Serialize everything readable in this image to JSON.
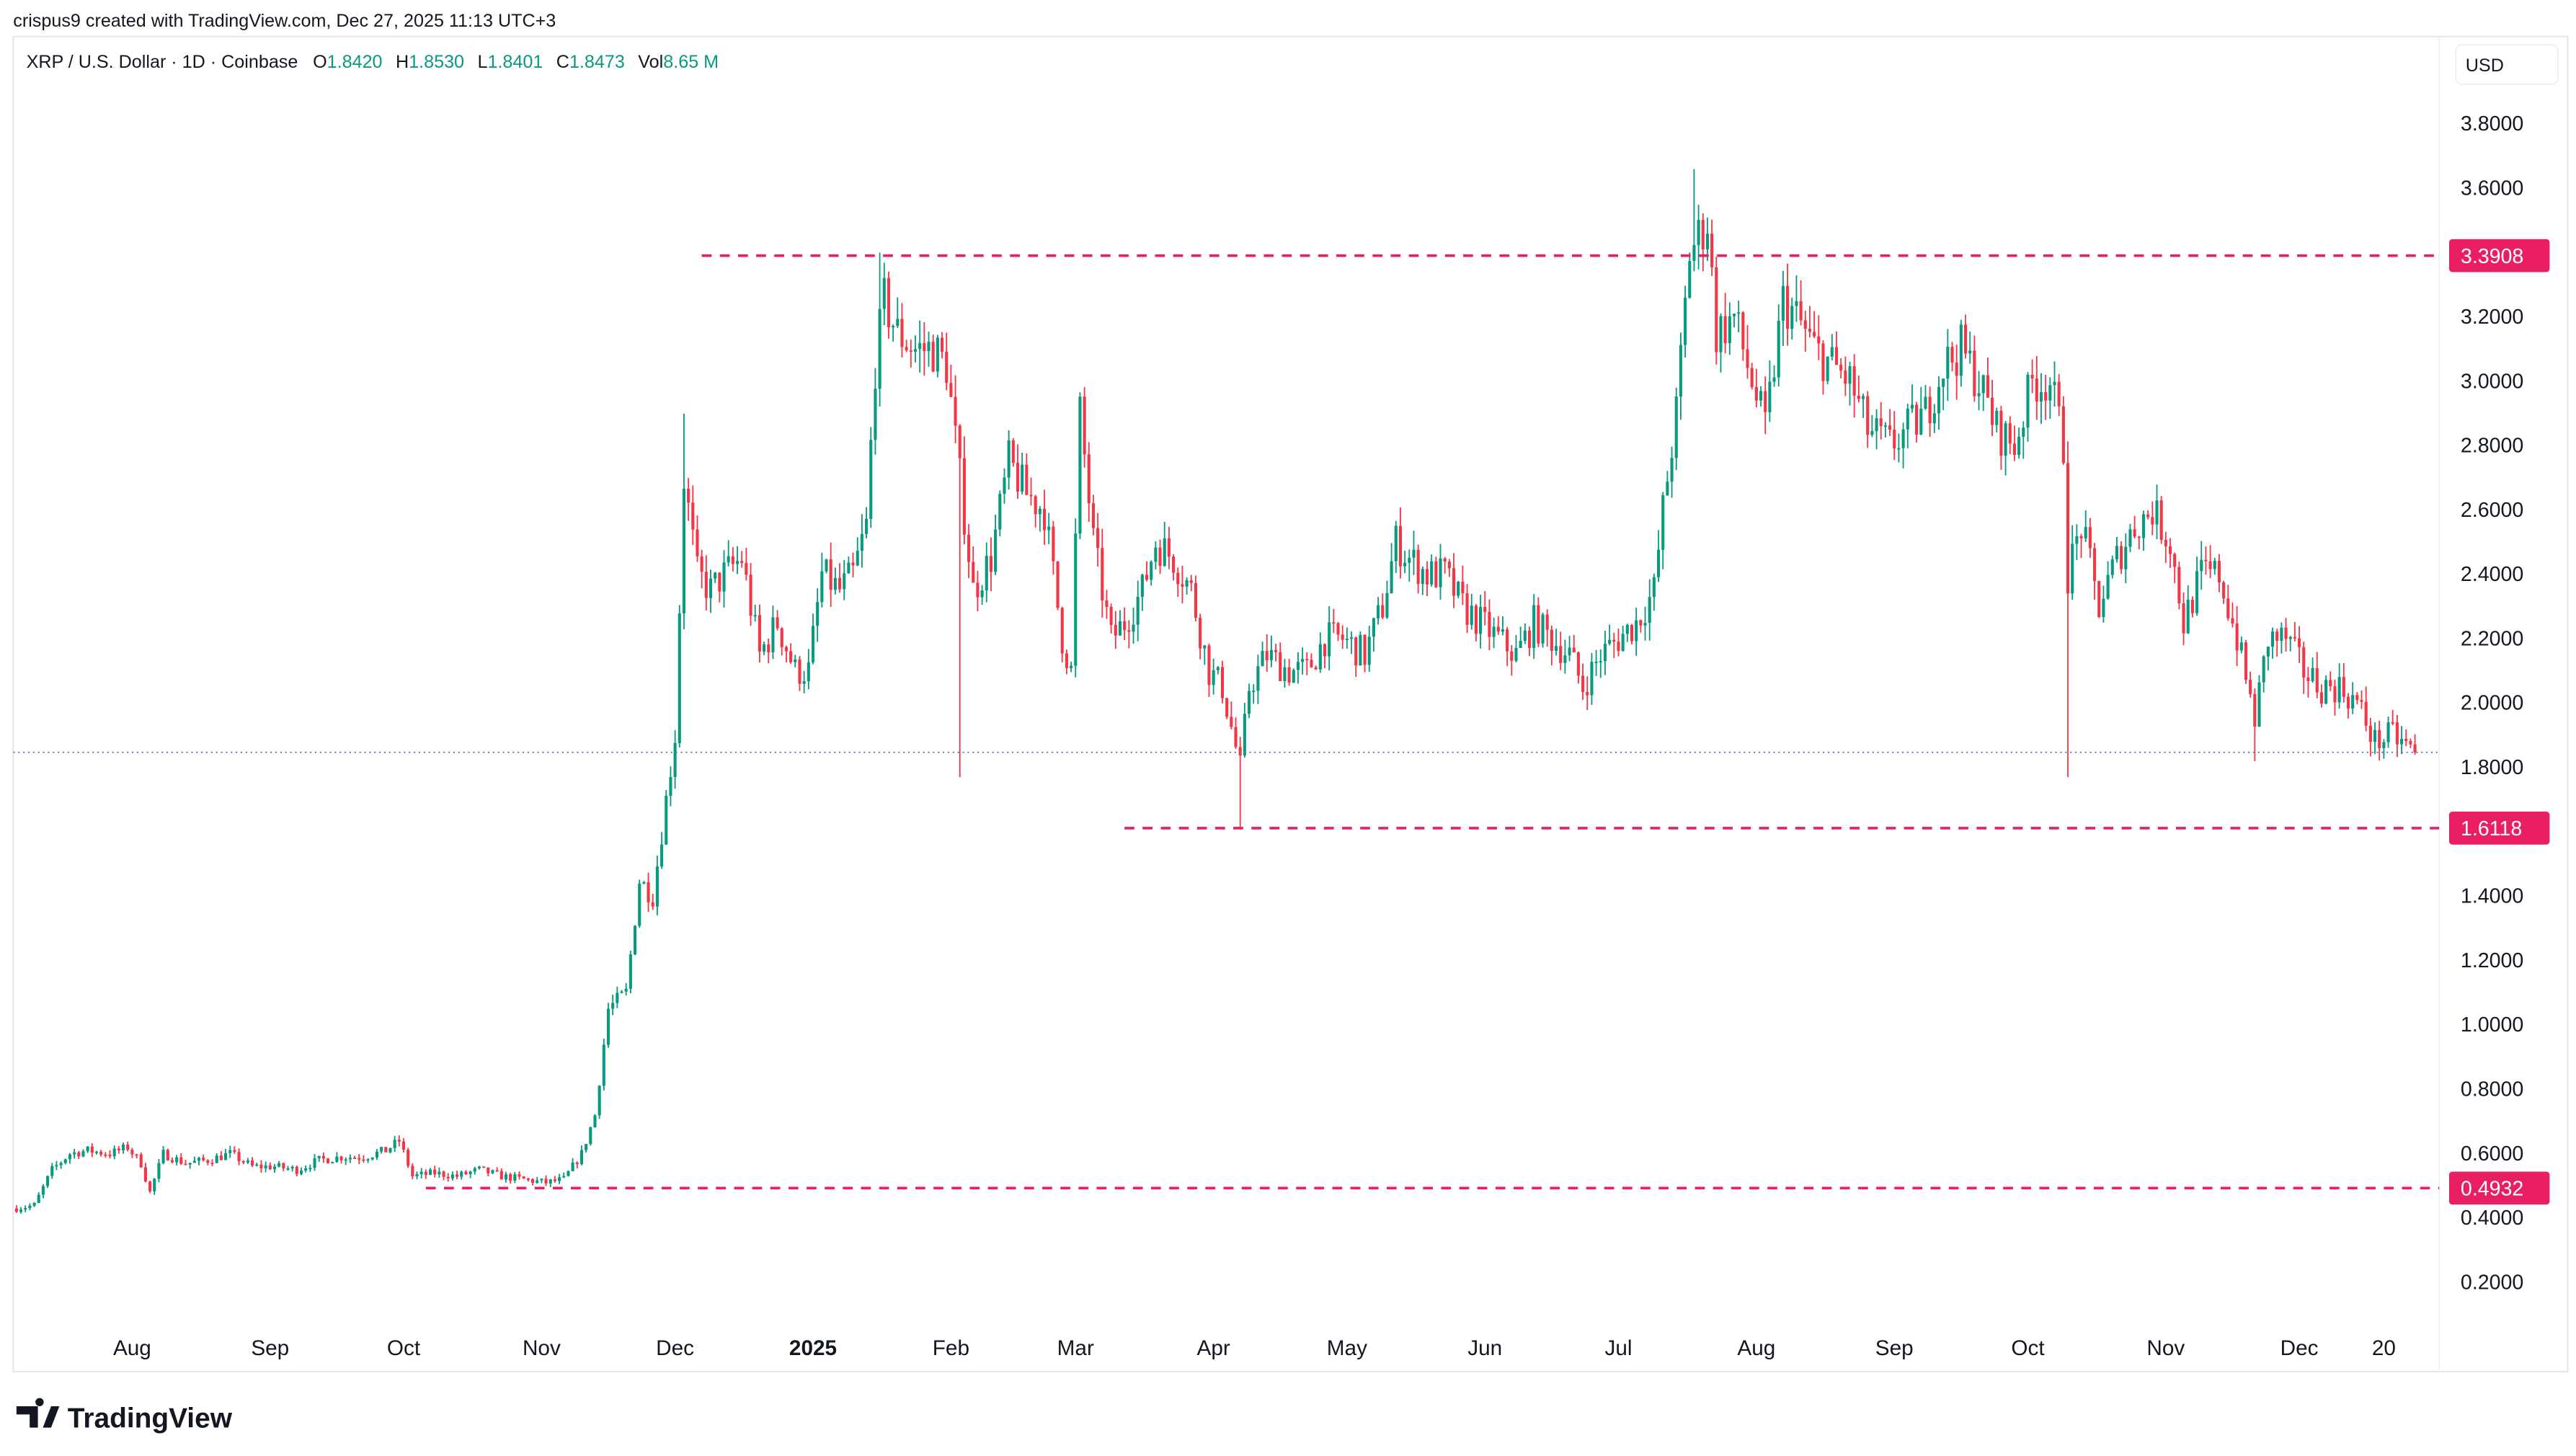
{
  "header": {
    "credit": "crispus9 created with TradingView.com, Dec 27, 2025 11:13 UTC+3",
    "symbol": "XRP / U.S. Dollar · 1D · Coinbase",
    "o_label": "O",
    "o_value": "1.8420",
    "h_label": "H",
    "h_value": "1.8530",
    "l_label": "L",
    "l_value": "1.8401",
    "c_label": "C",
    "c_value": "1.8473",
    "vol_label": "Vol",
    "vol_value": "8.65 M"
  },
  "currency_button": "USD",
  "footer": {
    "logo_text": "TradingView"
  },
  "colors": {
    "up": "#089981",
    "down": "#f23645",
    "level": "#e91e63",
    "last_price": "#5b7bb0"
  },
  "chart_data": {
    "type": "candlestick",
    "title": "",
    "interval": "1D",
    "ylim": [
      0.1,
      3.95
    ],
    "y_ticks": [
      "3.8000",
      "3.6000",
      "3.2000",
      "3.0000",
      "2.8000",
      "2.6000",
      "2.4000",
      "2.2000",
      "2.0000",
      "1.8000",
      "1.4000",
      "1.2000",
      "1.0000",
      "0.8000",
      "0.6000",
      "0.4000",
      "0.2000"
    ],
    "x_ticks": [
      {
        "label": "Aug",
        "date": "2024-08-01"
      },
      {
        "label": "Sep",
        "date": "2024-09-01"
      },
      {
        "label": "Oct",
        "date": "2024-10-01"
      },
      {
        "label": "Nov",
        "date": "2024-11-01"
      },
      {
        "label": "Dec",
        "date": "2024-12-01"
      },
      {
        "label": "2025",
        "date": "2025-01-01",
        "bold": true
      },
      {
        "label": "Feb",
        "date": "2025-02-01"
      },
      {
        "label": "Mar",
        "date": "2025-03-01"
      },
      {
        "label": "Apr",
        "date": "2025-04-01"
      },
      {
        "label": "May",
        "date": "2025-05-01"
      },
      {
        "label": "Jun",
        "date": "2025-06-01"
      },
      {
        "label": "Jul",
        "date": "2025-07-01"
      },
      {
        "label": "Aug",
        "date": "2025-08-01"
      },
      {
        "label": "Sep",
        "date": "2025-09-01"
      },
      {
        "label": "Oct",
        "date": "2025-10-01"
      },
      {
        "label": "Nov",
        "date": "2025-11-01"
      },
      {
        "label": "Dec",
        "date": "2025-12-01"
      },
      {
        "label": "20",
        "date": "2025-12-20"
      }
    ],
    "horizontal_levels": [
      {
        "value": 3.3908,
        "label": "3.3908",
        "from": "2024-12-07"
      },
      {
        "value": 1.6118,
        "label": "1.6118",
        "from": "2025-03-12"
      },
      {
        "value": 0.4932,
        "label": "0.4932",
        "from": "2024-10-06"
      }
    ],
    "last_price": 1.8473,
    "closes": [
      [
        "2024-07-06",
        0.43
      ],
      [
        "2024-07-10",
        0.44
      ],
      [
        "2024-07-14",
        0.55
      ],
      [
        "2024-07-18",
        0.6
      ],
      [
        "2024-07-22",
        0.61
      ],
      [
        "2024-07-27",
        0.6
      ],
      [
        "2024-07-31",
        0.62
      ],
      [
        "2024-08-03",
        0.57
      ],
      [
        "2024-08-05",
        0.48
      ],
      [
        "2024-08-08",
        0.6
      ],
      [
        "2024-08-13",
        0.57
      ],
      [
        "2024-08-18",
        0.58
      ],
      [
        "2024-08-23",
        0.6
      ],
      [
        "2024-08-28",
        0.56
      ],
      [
        "2024-09-02",
        0.56
      ],
      [
        "2024-09-07",
        0.55
      ],
      [
        "2024-09-12",
        0.58
      ],
      [
        "2024-09-17",
        0.59
      ],
      [
        "2024-09-22",
        0.59
      ],
      [
        "2024-09-27",
        0.61
      ],
      [
        "2024-09-30",
        0.64
      ],
      [
        "2024-10-03",
        0.53
      ],
      [
        "2024-10-08",
        0.54
      ],
      [
        "2024-10-13",
        0.53
      ],
      [
        "2024-10-18",
        0.55
      ],
      [
        "2024-10-23",
        0.53
      ],
      [
        "2024-10-28",
        0.52
      ],
      [
        "2024-11-02",
        0.51
      ],
      [
        "2024-11-06",
        0.52
      ],
      [
        "2024-11-10",
        0.6
      ],
      [
        "2024-11-13",
        0.72
      ],
      [
        "2024-11-16",
        1.05
      ],
      [
        "2024-11-20",
        1.1
      ],
      [
        "2024-11-23",
        1.45
      ],
      [
        "2024-11-26",
        1.4
      ],
      [
        "2024-11-29",
        1.7
      ],
      [
        "2024-12-01",
        1.9
      ],
      [
        "2024-12-03",
        2.7
      ],
      [
        "2024-12-06",
        2.4
      ],
      [
        "2024-12-09",
        2.35
      ],
      [
        "2024-12-12",
        2.4
      ],
      [
        "2024-12-16",
        2.45
      ],
      [
        "2024-12-20",
        2.15
      ],
      [
        "2024-12-24",
        2.25
      ],
      [
        "2024-12-28",
        2.1
      ],
      [
        "2024-12-31",
        2.1
      ],
      [
        "2025-01-03",
        2.4
      ],
      [
        "2025-01-07",
        2.35
      ],
      [
        "2025-01-10",
        2.4
      ],
      [
        "2025-01-13",
        2.55
      ],
      [
        "2025-01-15",
        3.05
      ],
      [
        "2025-01-17",
        3.25
      ],
      [
        "2025-01-20",
        3.15
      ],
      [
        "2025-01-24",
        3.1
      ],
      [
        "2025-01-28",
        3.1
      ],
      [
        "2025-01-31",
        3.05
      ],
      [
        "2025-02-03",
        2.7
      ],
      [
        "2025-02-06",
        2.35
      ],
      [
        "2025-02-10",
        2.45
      ],
      [
        "2025-02-14",
        2.75
      ],
      [
        "2025-02-18",
        2.65
      ],
      [
        "2025-02-22",
        2.6
      ],
      [
        "2025-02-26",
        2.2
      ],
      [
        "2025-02-28",
        2.1
      ],
      [
        "2025-03-02",
        2.9
      ],
      [
        "2025-03-05",
        2.5
      ],
      [
        "2025-03-09",
        2.2
      ],
      [
        "2025-03-12",
        2.25
      ],
      [
        "2025-03-16",
        2.35
      ],
      [
        "2025-03-19",
        2.5
      ],
      [
        "2025-03-23",
        2.45
      ],
      [
        "2025-03-27",
        2.35
      ],
      [
        "2025-03-31",
        2.1
      ],
      [
        "2025-04-03",
        2.05
      ],
      [
        "2025-04-07",
        1.8
      ],
      [
        "2025-04-09",
        2.05
      ],
      [
        "2025-04-13",
        2.15
      ],
      [
        "2025-04-18",
        2.1
      ],
      [
        "2025-04-22",
        2.1
      ],
      [
        "2025-04-26",
        2.2
      ],
      [
        "2025-04-30",
        2.2
      ],
      [
        "2025-05-05",
        2.15
      ],
      [
        "2025-05-09",
        2.3
      ],
      [
        "2025-05-12",
        2.5
      ],
      [
        "2025-05-15",
        2.45
      ],
      [
        "2025-05-19",
        2.4
      ],
      [
        "2025-05-23",
        2.4
      ],
      [
        "2025-05-27",
        2.3
      ],
      [
        "2025-05-31",
        2.25
      ],
      [
        "2025-06-04",
        2.2
      ],
      [
        "2025-06-08",
        2.15
      ],
      [
        "2025-06-12",
        2.25
      ],
      [
        "2025-06-16",
        2.2
      ],
      [
        "2025-06-20",
        2.15
      ],
      [
        "2025-06-23",
        2.05
      ],
      [
        "2025-06-27",
        2.15
      ],
      [
        "2025-07-01",
        2.2
      ],
      [
        "2025-07-05",
        2.25
      ],
      [
        "2025-07-09",
        2.35
      ],
      [
        "2025-07-11",
        2.6
      ],
      [
        "2025-07-14",
        2.9
      ],
      [
        "2025-07-17",
        3.4
      ],
      [
        "2025-07-19",
        3.45
      ],
      [
        "2025-07-21",
        3.5
      ],
      [
        "2025-07-23",
        3.15
      ],
      [
        "2025-07-27",
        3.2
      ],
      [
        "2025-07-31",
        3.0
      ],
      [
        "2025-08-03",
        2.85
      ],
      [
        "2025-08-07",
        3.25
      ],
      [
        "2025-08-10",
        3.2
      ],
      [
        "2025-08-14",
        3.1
      ],
      [
        "2025-08-18",
        3.05
      ],
      [
        "2025-08-22",
        3.0
      ],
      [
        "2025-08-26",
        2.85
      ],
      [
        "2025-08-31",
        2.8
      ],
      [
        "2025-09-04",
        2.85
      ],
      [
        "2025-09-08",
        2.9
      ],
      [
        "2025-09-12",
        3.05
      ],
      [
        "2025-09-16",
        3.1
      ],
      [
        "2025-09-20",
        3.0
      ],
      [
        "2025-09-24",
        2.85
      ],
      [
        "2025-09-28",
        2.8
      ],
      [
        "2025-10-02",
        3.0
      ],
      [
        "2025-10-06",
        3.0
      ],
      [
        "2025-10-09",
        2.8
      ],
      [
        "2025-10-10",
        2.4
      ],
      [
        "2025-10-13",
        2.55
      ],
      [
        "2025-10-17",
        2.3
      ],
      [
        "2025-10-21",
        2.45
      ],
      [
        "2025-10-25",
        2.55
      ],
      [
        "2025-10-29",
        2.6
      ],
      [
        "2025-11-02",
        2.5
      ],
      [
        "2025-11-05",
        2.25
      ],
      [
        "2025-11-09",
        2.4
      ],
      [
        "2025-11-13",
        2.4
      ],
      [
        "2025-11-17",
        2.2
      ],
      [
        "2025-11-21",
        1.95
      ],
      [
        "2025-11-24",
        2.2
      ],
      [
        "2025-11-28",
        2.2
      ],
      [
        "2025-12-02",
        2.1
      ],
      [
        "2025-12-06",
        2.05
      ],
      [
        "2025-12-10",
        2.05
      ],
      [
        "2025-12-14",
        2.0
      ],
      [
        "2025-12-18",
        1.88
      ],
      [
        "2025-12-22",
        1.9
      ],
      [
        "2025-12-27",
        1.8473
      ]
    ],
    "notable_wicks": [
      {
        "date": "2024-12-03",
        "high": 2.9
      },
      {
        "date": "2025-01-16",
        "high": 3.4
      },
      {
        "date": "2025-02-03",
        "low": 1.77
      },
      {
        "date": "2025-04-07",
        "low": 1.61
      },
      {
        "date": "2025-07-18",
        "high": 3.66
      },
      {
        "date": "2025-10-10",
        "low": 1.77
      },
      {
        "date": "2025-11-21",
        "low": 1.82
      }
    ]
  }
}
